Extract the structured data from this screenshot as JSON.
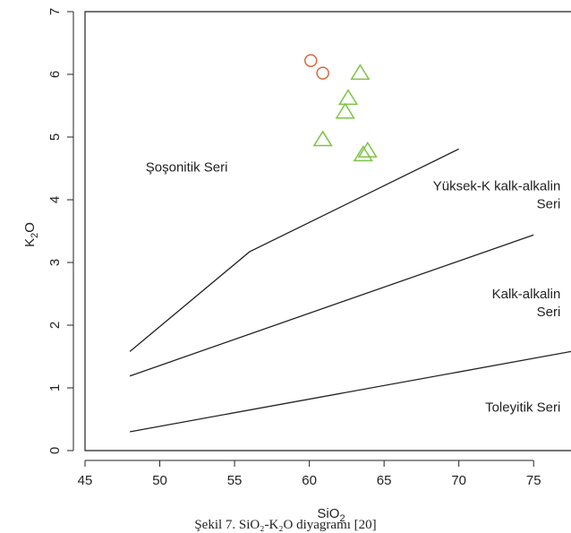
{
  "chart_data": {
    "type": "scatter",
    "xlabel": "SiO",
    "xlabel_sub": "2",
    "ylabel": "K",
    "ylabel_sub": "2",
    "ylabel_suffix": "O",
    "xlim": [
      45,
      77.5
    ],
    "ylim": [
      0,
      7
    ],
    "x_ticks": [
      45,
      50,
      55,
      60,
      65,
      70,
      75
    ],
    "y_ticks": [
      0,
      1,
      2,
      3,
      4,
      5,
      6,
      7
    ],
    "grid": false,
    "series": [
      {
        "marker": "circle",
        "color": "#d2693c",
        "x": [
          60.1,
          60.9
        ],
        "y": [
          6.22,
          6.02
        ]
      },
      {
        "marker": "triangle",
        "color": "#7cc444",
        "x": [
          63.4,
          62.6,
          62.4,
          60.9,
          63.9,
          63.6
        ],
        "y": [
          6.02,
          5.62,
          5.4,
          4.96,
          4.78,
          4.72
        ]
      }
    ],
    "boundary_lines": [
      {
        "x": [
          48,
          56,
          70
        ],
        "y": [
          1.58,
          3.17,
          4.81
        ]
      },
      {
        "x": [
          48,
          75
        ],
        "y": [
          1.19,
          3.44
        ]
      },
      {
        "x": [
          48,
          77.5
        ],
        "y": [
          0.3,
          1.58
        ]
      }
    ],
    "region_labels": [
      {
        "lines": [
          "Şoşonitik Seri"
        ],
        "x": 51.8,
        "y": 4.45,
        "anchor": "middle"
      },
      {
        "lines": [
          "Yüksek-K kalk-alkalin",
          "Seri"
        ],
        "x": 76.8,
        "y": 4.15,
        "anchor": "end"
      },
      {
        "lines": [
          "Kalk-alkalin",
          "Seri"
        ],
        "x": 76.8,
        "y": 2.43,
        "anchor": "end"
      },
      {
        "lines": [
          "Toleyitik Seri"
        ],
        "x": 76.8,
        "y": 0.62,
        "anchor": "end"
      }
    ],
    "caption": "Şekil 7. SiO₂-K₂O diyagramı [20]"
  }
}
